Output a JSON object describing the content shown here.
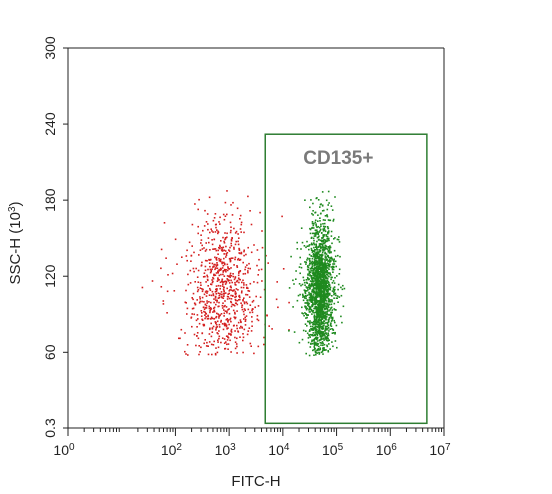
{
  "chart_data": {
    "type": "scatter",
    "xlabel": "FITC-H",
    "ylabel": "SSC-H",
    "ylabel_exponent": "3",
    "x_scale": "log",
    "xlim": [
      1,
      10000000
    ],
    "ylim": [
      0.3,
      300
    ],
    "x_ticks": [
      {
        "value": 1,
        "base": "10",
        "exp": "0"
      },
      {
        "value": 100,
        "base": "10",
        "exp": "2"
      },
      {
        "value": 1000,
        "base": "10",
        "exp": "3"
      },
      {
        "value": 10000,
        "base": "10",
        "exp": "4"
      },
      {
        "value": 100000,
        "base": "10",
        "exp": "5"
      },
      {
        "value": 1000000,
        "base": "10",
        "exp": "6"
      },
      {
        "value": 10000000,
        "base": "10",
        "exp": "7"
      }
    ],
    "y_ticks": [
      {
        "value": 0.3,
        "label": "0.3"
      },
      {
        "value": 60,
        "label": "60"
      },
      {
        "value": 120,
        "label": "120"
      },
      {
        "value": 180,
        "label": "180"
      },
      {
        "value": 240,
        "label": "240"
      },
      {
        "value": 300,
        "label": "300"
      }
    ],
    "gate": {
      "label": "CD135+",
      "x_range": [
        4700,
        4800000
      ],
      "y_range": [
        4,
        232
      ],
      "color": "#2e7d32"
    },
    "populations": [
      {
        "color": "#d42020",
        "x_center": 700,
        "x_log_sd": 0.32,
        "y_center": 108,
        "y_sd": 32,
        "count": 820,
        "x_range": [
          22,
          13000
        ],
        "y_range": [
          58,
          196
        ]
      },
      {
        "color": "#1f8a1f",
        "x_center": 48000,
        "x_log_sd": 0.11,
        "y_center": 110,
        "y_sd": 26,
        "count": 1900,
        "x_range": [
          12000,
          140000
        ],
        "y_range": [
          58,
          190
        ]
      }
    ],
    "grid": false
  }
}
